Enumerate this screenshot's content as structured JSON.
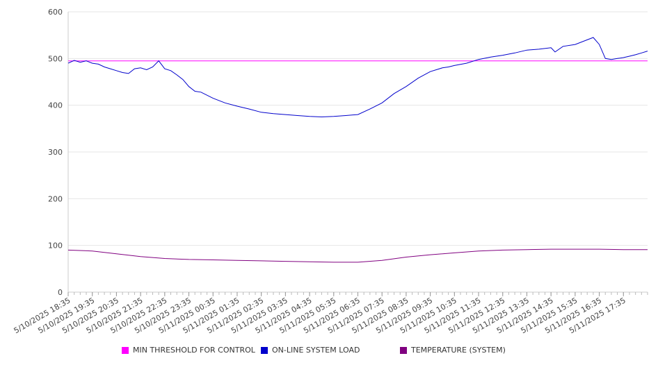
{
  "chart_data": {
    "type": "line",
    "title": "",
    "xlabel": "",
    "ylabel": "",
    "ylim": [
      0,
      600
    ],
    "yticks": [
      "0",
      "100",
      "200",
      "300",
      "400",
      "500",
      "600"
    ],
    "xticks": [
      "5/10/2025 18:35",
      "5/10/2025 19:35",
      "5/10/2025 20:35",
      "5/10/2025 21:35",
      "5/10/2025 22:35",
      "5/10/2025 23:35",
      "5/11/2025 00:35",
      "5/11/2025 01:35",
      "5/11/2025 02:35",
      "5/11/2025 03:35",
      "5/11/2025 04:35",
      "5/11/2025 05:35",
      "5/11/2025 06:35",
      "5/11/2025 07:35",
      "5/11/2025 08:35",
      "5/11/2025 09:35",
      "5/11/2025 10:35",
      "5/11/2025 11:35",
      "5/11/2025 12:35",
      "5/11/2025 13:35",
      "5/11/2025 14:35",
      "5/11/2025 15:35",
      "5/11/2025 16:35",
      "5/11/2025 17:35"
    ],
    "grid": true,
    "legend_position": "bottom",
    "series": [
      {
        "name": "MIN THRESHOLD FOR CONTROL",
        "color": "#ff00ff",
        "x": [
          "5/10/2025 18:35",
          "5/11/2025 18:35"
        ],
        "values": [
          495,
          495
        ]
      },
      {
        "name": "ON-LINE SYSTEM LOAD",
        "color": "#0000cc",
        "x": [
          "5/10/2025 18:35",
          "5/10/2025 18:50",
          "5/10/2025 19:05",
          "5/10/2025 19:20",
          "5/10/2025 19:35",
          "5/10/2025 19:50",
          "5/10/2025 20:05",
          "5/10/2025 20:20",
          "5/10/2025 20:35",
          "5/10/2025 20:50",
          "5/10/2025 21:05",
          "5/10/2025 21:20",
          "5/10/2025 21:35",
          "5/10/2025 21:50",
          "5/10/2025 22:05",
          "5/10/2025 22:20",
          "5/10/2025 22:35",
          "5/10/2025 22:50",
          "5/10/2025 23:05",
          "5/10/2025 23:20",
          "5/10/2025 23:35",
          "5/10/2025 23:50",
          "5/11/2025 00:05",
          "5/11/2025 00:35",
          "5/11/2025 01:05",
          "5/11/2025 01:35",
          "5/11/2025 02:05",
          "5/11/2025 02:35",
          "5/11/2025 03:05",
          "5/11/2025 03:35",
          "5/11/2025 04:05",
          "5/11/2025 04:35",
          "5/11/2025 05:05",
          "5/11/2025 05:35",
          "5/11/2025 06:05",
          "5/11/2025 06:35",
          "5/11/2025 07:05",
          "5/11/2025 07:35",
          "5/11/2025 08:05",
          "5/11/2025 08:35",
          "5/11/2025 09:05",
          "5/11/2025 09:35",
          "5/11/2025 10:05",
          "5/11/2025 10:20",
          "5/11/2025 10:35",
          "5/11/2025 11:05",
          "5/11/2025 11:35",
          "5/11/2025 12:05",
          "5/11/2025 12:35",
          "5/11/2025 13:05",
          "5/11/2025 13:35",
          "5/11/2025 14:05",
          "5/11/2025 14:35",
          "5/11/2025 14:45",
          "5/11/2025 15:05",
          "5/11/2025 15:35",
          "5/11/2025 16:05",
          "5/11/2025 16:20",
          "5/11/2025 16:35",
          "5/11/2025 16:50",
          "5/11/2025 17:05",
          "5/11/2025 17:20",
          "5/11/2025 17:35",
          "5/11/2025 17:50",
          "5/11/2025 18:05",
          "5/11/2025 18:20",
          "5/11/2025 18:35"
        ],
        "values": [
          490,
          496,
          492,
          495,
          490,
          488,
          482,
          478,
          474,
          470,
          468,
          478,
          480,
          476,
          482,
          495,
          478,
          474,
          465,
          455,
          440,
          430,
          428,
          415,
          405,
          398,
          392,
          385,
          382,
          380,
          378,
          376,
          375,
          376,
          378,
          380,
          392,
          405,
          425,
          440,
          458,
          472,
          480,
          482,
          485,
          490,
          498,
          503,
          507,
          512,
          518,
          520,
          523,
          514,
          526,
          530,
          540,
          545,
          530,
          500,
          498,
          500,
          502,
          505,
          508,
          512,
          516
        ]
      },
      {
        "name": "TEMPERATURE (SYSTEM)",
        "color": "#800080",
        "x": [
          "5/10/2025 18:35",
          "5/10/2025 19:35",
          "5/10/2025 20:35",
          "5/10/2025 21:35",
          "5/10/2025 22:35",
          "5/10/2025 23:35",
          "5/11/2025 00:35",
          "5/11/2025 01:35",
          "5/11/2025 02:35",
          "5/11/2025 03:35",
          "5/11/2025 04:35",
          "5/11/2025 05:35",
          "5/11/2025 06:35",
          "5/11/2025 07:35",
          "5/11/2025 08:35",
          "5/11/2025 09:35",
          "5/11/2025 10:35",
          "5/11/2025 11:35",
          "5/11/2025 12:35",
          "5/11/2025 13:35",
          "5/11/2025 14:35",
          "5/11/2025 15:35",
          "5/11/2025 16:35",
          "5/11/2025 17:35",
          "5/11/2025 18:35"
        ],
        "values": [
          90,
          88,
          82,
          76,
          72,
          70,
          69,
          68,
          67,
          66,
          65,
          64,
          64,
          68,
          75,
          80,
          84,
          88,
          90,
          91,
          92,
          92,
          92,
          91,
          91
        ]
      }
    ]
  }
}
